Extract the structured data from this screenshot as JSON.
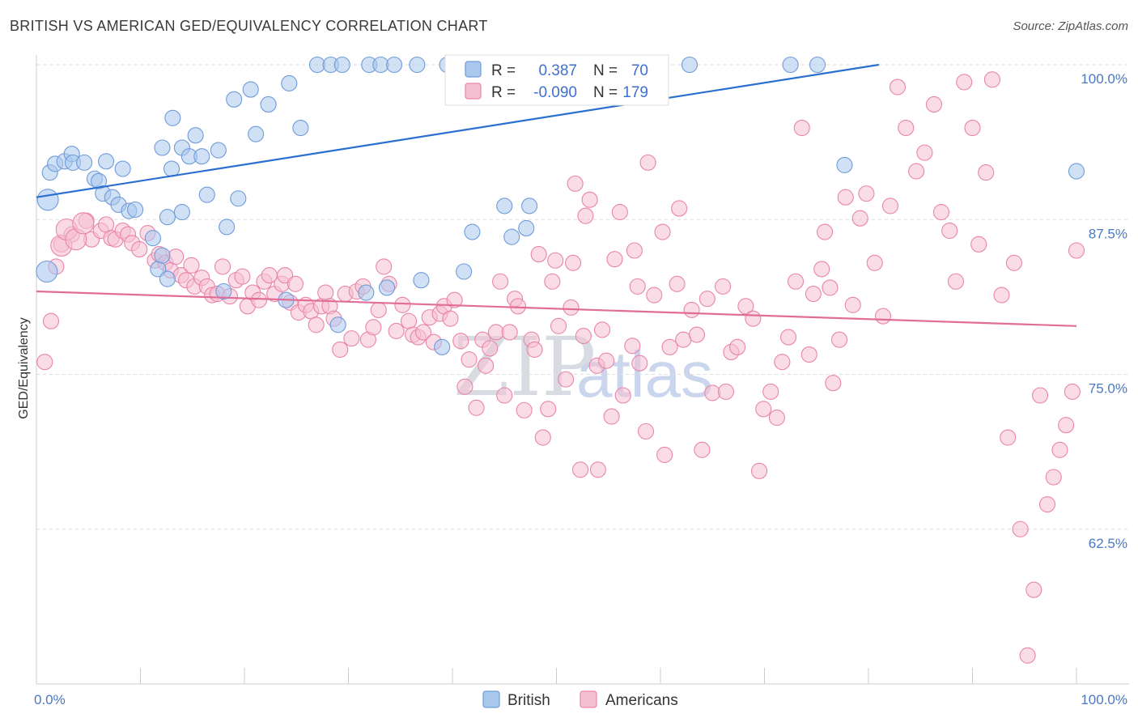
{
  "title": "BRITISH VS AMERICAN GED/EQUIVALENCY CORRELATION CHART",
  "source": "Source: ZipAtlas.com",
  "watermark": {
    "zip": "ZIP",
    "atlas": "atlas"
  },
  "colors": {
    "british": "#6f9bd8",
    "british_fill": "#aac8ee",
    "americans": "#e985a8",
    "americans_fill": "#f5bfd2",
    "british_line": "#2a6fd0",
    "americans_line": "#e06d98",
    "tick": "#4a78c2"
  },
  "legend": {
    "british": {
      "r_label": "R =",
      "r_value": "0.387",
      "n_label": "N =",
      "n_value": "70"
    },
    "americans": {
      "r_label": "R =",
      "r_value": "-0.090",
      "n_label": "N =",
      "n_value": "179"
    }
  },
  "chart_data": {
    "type": "scatter",
    "title": "BRITISH VS AMERICAN GED/EQUIVALENCY CORRELATION CHART",
    "xlabel": "",
    "ylabel": "GED/Equivalency",
    "xlim": [
      0,
      100
    ],
    "ylim": [
      50,
      100
    ],
    "x_tick_labels": [
      "0.0%",
      "100.0%"
    ],
    "y_ticks": [
      62.5,
      75.0,
      87.5,
      100.0
    ],
    "y_tick_labels": [
      "62.5%",
      "75.0%",
      "87.5%",
      "100.0%"
    ],
    "grid": true,
    "legend_position": "top-center",
    "bottom_legend": [
      "British",
      "Americans"
    ],
    "series": [
      {
        "name": "British",
        "trend": {
          "x": [
            0,
            81
          ],
          "y": [
            89.3,
            100.0
          ]
        },
        "points": [
          [
            1.3,
            91.3
          ],
          [
            1.8,
            92.0
          ],
          [
            2.7,
            92.2
          ],
          [
            3.4,
            92.8
          ],
          [
            3.5,
            92.1
          ],
          [
            4.6,
            92.1
          ],
          [
            5.6,
            90.8
          ],
          [
            6.0,
            90.6
          ],
          [
            6.4,
            89.6
          ],
          [
            6.7,
            92.2
          ],
          [
            7.3,
            89.3
          ],
          [
            7.9,
            88.7
          ],
          [
            8.3,
            91.6
          ],
          [
            8.9,
            88.2
          ],
          [
            9.5,
            88.3
          ],
          [
            11.2,
            86.0
          ],
          [
            11.7,
            83.5
          ],
          [
            12.1,
            84.6
          ],
          [
            12.1,
            93.3
          ],
          [
            12.6,
            82.7
          ],
          [
            12.6,
            87.7
          ],
          [
            13.1,
            95.7
          ],
          [
            13.0,
            91.6
          ],
          [
            14.0,
            88.1
          ],
          [
            14.0,
            93.3
          ],
          [
            14.7,
            92.6
          ],
          [
            15.3,
            94.3
          ],
          [
            15.9,
            92.6
          ],
          [
            16.4,
            89.5
          ],
          [
            17.5,
            93.1
          ],
          [
            18.3,
            86.9
          ],
          [
            18.0,
            81.7
          ],
          [
            19.0,
            97.2
          ],
          [
            19.4,
            89.2
          ],
          [
            20.6,
            98.0
          ],
          [
            21.1,
            94.4
          ],
          [
            22.3,
            96.8
          ],
          [
            24.3,
            98.5
          ],
          [
            25.4,
            94.9
          ],
          [
            27.0,
            100.0
          ],
          [
            28.3,
            100.0
          ],
          [
            29.4,
            100.0
          ],
          [
            32.0,
            100.0
          ],
          [
            33.1,
            100.0
          ],
          [
            34.4,
            100.0
          ],
          [
            36.6,
            100.0
          ],
          [
            39.5,
            100.0
          ],
          [
            44.8,
            100.0
          ],
          [
            48.7,
            100.0
          ],
          [
            53.1,
            100.0
          ],
          [
            54.7,
            100.0
          ],
          [
            58.1,
            100.0
          ],
          [
            58.9,
            100.0
          ],
          [
            62.8,
            100.0
          ],
          [
            72.5,
            100.0
          ],
          [
            75.1,
            100.0
          ],
          [
            77.7,
            91.9
          ],
          [
            45.0,
            88.6
          ],
          [
            45.7,
            86.1
          ],
          [
            47.1,
            86.8
          ],
          [
            47.4,
            88.6
          ],
          [
            41.9,
            86.5
          ],
          [
            41.1,
            83.3
          ],
          [
            39.0,
            77.2
          ],
          [
            37.0,
            82.6
          ],
          [
            33.7,
            82.0
          ],
          [
            31.7,
            81.6
          ],
          [
            29.0,
            79.0
          ],
          [
            24.0,
            81.0
          ],
          [
            100.0,
            91.4
          ]
        ],
        "large_points": [
          [
            1.0,
            83.3
          ],
          [
            1.1,
            89.1
          ]
        ]
      },
      {
        "name": "Americans",
        "trend": {
          "x": [
            0,
            100
          ],
          "y": [
            81.7,
            78.9
          ]
        },
        "points": [
          [
            0.8,
            76.0
          ],
          [
            1.4,
            79.3
          ],
          [
            1.9,
            83.7
          ],
          [
            2.4,
            85.5
          ],
          [
            3.4,
            86.3
          ],
          [
            4.8,
            87.4
          ],
          [
            5.3,
            85.9
          ],
          [
            6.2,
            86.6
          ],
          [
            6.7,
            87.1
          ],
          [
            7.2,
            86.0
          ],
          [
            7.6,
            85.9
          ],
          [
            8.3,
            86.6
          ],
          [
            8.8,
            86.3
          ],
          [
            9.2,
            85.6
          ],
          [
            9.9,
            85.1
          ],
          [
            10.7,
            86.4
          ],
          [
            11.4,
            84.2
          ],
          [
            11.8,
            84.7
          ],
          [
            12.4,
            84.0
          ],
          [
            12.9,
            83.4
          ],
          [
            13.4,
            84.5
          ],
          [
            13.9,
            83.0
          ],
          [
            14.4,
            82.6
          ],
          [
            14.9,
            83.8
          ],
          [
            15.2,
            82.1
          ],
          [
            15.9,
            82.8
          ],
          [
            16.4,
            82.1
          ],
          [
            16.9,
            81.4
          ],
          [
            17.4,
            81.5
          ],
          [
            17.9,
            83.7
          ],
          [
            18.6,
            81.3
          ],
          [
            19.2,
            82.6
          ],
          [
            19.8,
            82.9
          ],
          [
            20.3,
            80.5
          ],
          [
            20.8,
            81.6
          ],
          [
            21.4,
            81.0
          ],
          [
            21.9,
            82.5
          ],
          [
            22.4,
            83.0
          ],
          [
            22.9,
            81.5
          ],
          [
            23.6,
            82.3
          ],
          [
            23.9,
            83.0
          ],
          [
            24.4,
            80.8
          ],
          [
            24.9,
            82.3
          ],
          [
            25.2,
            80.0
          ],
          [
            25.9,
            80.6
          ],
          [
            26.4,
            80.1
          ],
          [
            26.9,
            79.0
          ],
          [
            27.4,
            80.5
          ],
          [
            27.8,
            81.6
          ],
          [
            28.2,
            80.5
          ],
          [
            28.6,
            79.5
          ],
          [
            29.2,
            77.0
          ],
          [
            29.7,
            81.5
          ],
          [
            30.3,
            77.9
          ],
          [
            30.8,
            81.7
          ],
          [
            31.4,
            82.1
          ],
          [
            31.9,
            77.8
          ],
          [
            32.4,
            78.8
          ],
          [
            32.9,
            80.2
          ],
          [
            33.4,
            83.7
          ],
          [
            33.9,
            82.3
          ],
          [
            34.6,
            78.5
          ],
          [
            35.2,
            80.6
          ],
          [
            35.8,
            79.3
          ],
          [
            36.2,
            78.2
          ],
          [
            36.7,
            78.0
          ],
          [
            37.2,
            78.4
          ],
          [
            37.8,
            79.6
          ],
          [
            38.2,
            77.6
          ],
          [
            38.8,
            79.9
          ],
          [
            39.2,
            80.5
          ],
          [
            39.8,
            79.5
          ],
          [
            40.2,
            81.0
          ],
          [
            40.8,
            77.7
          ],
          [
            41.2,
            74.0
          ],
          [
            41.6,
            76.2
          ],
          [
            42.3,
            72.3
          ],
          [
            42.9,
            77.8
          ],
          [
            43.2,
            75.7
          ],
          [
            43.6,
            77.1
          ],
          [
            44.2,
            78.4
          ],
          [
            44.6,
            82.5
          ],
          [
            45.0,
            73.3
          ],
          [
            45.5,
            78.4
          ],
          [
            46.0,
            81.1
          ],
          [
            46.3,
            80.5
          ],
          [
            46.9,
            72.1
          ],
          [
            47.6,
            77.8
          ],
          [
            47.9,
            77.0
          ],
          [
            48.3,
            84.7
          ],
          [
            48.7,
            69.9
          ],
          [
            49.2,
            72.2
          ],
          [
            49.6,
            82.5
          ],
          [
            49.9,
            84.2
          ],
          [
            50.2,
            78.9
          ],
          [
            50.9,
            74.6
          ],
          [
            51.4,
            80.4
          ],
          [
            51.8,
            90.4
          ],
          [
            52.6,
            78.1
          ],
          [
            52.8,
            87.8
          ],
          [
            53.2,
            89.1
          ],
          [
            53.9,
            75.7
          ],
          [
            54.4,
            78.6
          ],
          [
            54.8,
            76.1
          ],
          [
            55.6,
            84.3
          ],
          [
            56.1,
            88.1
          ],
          [
            57.3,
            77.3
          ],
          [
            57.8,
            82.1
          ],
          [
            58.0,
            75.9
          ],
          [
            58.8,
            92.1
          ],
          [
            59.4,
            81.4
          ],
          [
            60.4,
            68.5
          ],
          [
            60.9,
            77.2
          ],
          [
            61.6,
            82.3
          ],
          [
            62.2,
            77.8
          ],
          [
            63.0,
            80.2
          ],
          [
            63.5,
            78.2
          ],
          [
            64.0,
            68.9
          ],
          [
            64.5,
            81.1
          ],
          [
            65.0,
            73.5
          ],
          [
            66.0,
            82.1
          ],
          [
            66.3,
            73.6
          ],
          [
            66.8,
            76.8
          ],
          [
            67.4,
            77.2
          ],
          [
            68.2,
            80.5
          ],
          [
            68.9,
            79.5
          ],
          [
            69.5,
            67.2
          ],
          [
            69.9,
            72.2
          ],
          [
            70.6,
            73.6
          ],
          [
            71.2,
            71.5
          ],
          [
            71.7,
            76.0
          ],
          [
            72.3,
            78.0
          ],
          [
            73.0,
            82.5
          ],
          [
            73.6,
            94.9
          ],
          [
            74.3,
            76.6
          ],
          [
            74.7,
            81.5
          ],
          [
            75.5,
            83.5
          ],
          [
            75.8,
            86.5
          ],
          [
            76.3,
            82.0
          ],
          [
            76.6,
            74.3
          ],
          [
            77.2,
            77.8
          ],
          [
            77.8,
            89.3
          ],
          [
            78.5,
            80.6
          ],
          [
            79.2,
            87.6
          ],
          [
            79.8,
            89.6
          ],
          [
            80.6,
            84.0
          ],
          [
            81.4,
            79.7
          ],
          [
            82.1,
            88.6
          ],
          [
            82.8,
            98.2
          ],
          [
            83.6,
            94.9
          ],
          [
            84.6,
            91.4
          ],
          [
            85.4,
            92.9
          ],
          [
            86.3,
            96.8
          ],
          [
            87.0,
            88.1
          ],
          [
            87.8,
            86.6
          ],
          [
            88.4,
            82.5
          ],
          [
            89.2,
            98.6
          ],
          [
            90.0,
            94.9
          ],
          [
            90.6,
            85.5
          ],
          [
            91.3,
            91.3
          ],
          [
            91.9,
            98.8
          ],
          [
            92.8,
            81.4
          ],
          [
            93.4,
            69.9
          ],
          [
            94.0,
            84.0
          ],
          [
            94.6,
            62.5
          ],
          [
            95.3,
            52.3
          ],
          [
            95.9,
            57.6
          ],
          [
            96.5,
            73.3
          ],
          [
            97.2,
            64.5
          ],
          [
            97.8,
            66.7
          ],
          [
            98.4,
            68.9
          ],
          [
            99.0,
            70.9
          ],
          [
            99.6,
            73.6
          ],
          [
            100.0,
            85.0
          ],
          [
            61.8,
            88.4
          ],
          [
            60.2,
            86.5
          ],
          [
            58.6,
            70.4
          ],
          [
            57.5,
            85.0
          ],
          [
            56.4,
            73.3
          ],
          [
            55.3,
            71.6
          ],
          [
            54.0,
            67.3
          ],
          [
            52.3,
            67.3
          ],
          [
            51.6,
            84.0
          ]
        ],
        "large_points": [
          [
            2.4,
            85.4
          ],
          [
            2.9,
            86.7
          ],
          [
            3.8,
            85.9
          ],
          [
            4.5,
            87.2
          ]
        ]
      }
    ]
  }
}
